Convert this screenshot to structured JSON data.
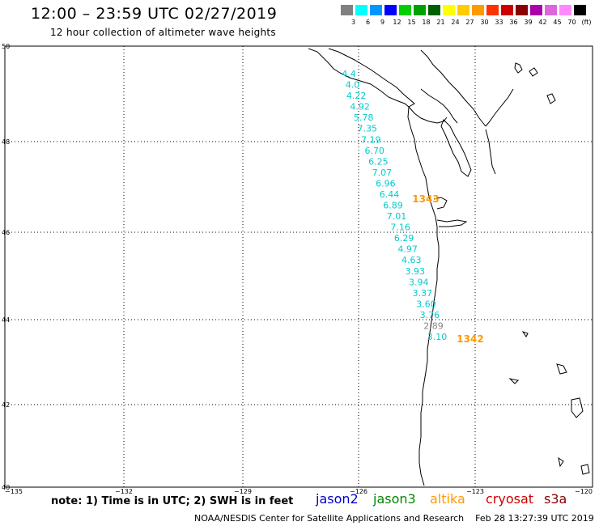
{
  "header": {
    "title": "12:00 – 23:59 UTC 02/27/2019",
    "subtitle": "12 hour collection of altimeter wave heights"
  },
  "legend": {
    "colors": [
      "#808080",
      "#00ffff",
      "#0096ff",
      "#0000ff",
      "#00d000",
      "#00a000",
      "#006000",
      "#ffff00",
      "#ffcc00",
      "#ff9900",
      "#ff3300",
      "#cc0000",
      "#880000",
      "#aa00aa",
      "#dd66dd",
      "#ff88ff",
      "#000000"
    ],
    "labels": [
      "3",
      "6",
      "9",
      "12",
      "15",
      "18",
      "21",
      "24",
      "27",
      "30",
      "33",
      "36",
      "39",
      "42",
      "45",
      "70",
      "(ft)"
    ]
  },
  "map": {
    "lat_labels": [
      "50",
      "48",
      "46",
      "44",
      "42",
      "40"
    ],
    "lon_labels": [
      "−135",
      "−132",
      "−129",
      "−126",
      "−123",
      "−120"
    ]
  },
  "chart_data": {
    "type": "scatter",
    "series_name": "jason3",
    "series_color": "#00cccc",
    "values": [
      "4.4",
      "4.0",
      "4.22",
      "4.92",
      "5.78",
      "7.35",
      "7.19",
      "6.70",
      "6.25",
      "7.07",
      "6.96",
      "6.44",
      "6.89",
      "7.01",
      "7.16",
      "6.29",
      "4.97",
      "4.63",
      "3.93",
      "3.94",
      "3.37",
      "3.60",
      "3.76",
      "2.89",
      "3.10"
    ],
    "track_labels": [
      {
        "text": "1343",
        "color": "#ff9900"
      },
      {
        "text": "1342",
        "color": "#ff9900"
      }
    ],
    "units": "ft"
  },
  "footer": {
    "note": "note:  1) Time is in UTC;  2) SWH is in feet",
    "satellites": [
      {
        "name": "jason2",
        "color": "#0000cc"
      },
      {
        "name": "jason3",
        "color": "#008800"
      },
      {
        "name": "altika",
        "color": "#ff9900"
      },
      {
        "name": "cryosat",
        "color": "#cc0000"
      },
      {
        "name": "s3a",
        "color": "#880000"
      }
    ],
    "credit": "NOAA/NESDIS Center for Satellite Applications and Research    Feb 28 13:27:39 UTC 2019"
  }
}
